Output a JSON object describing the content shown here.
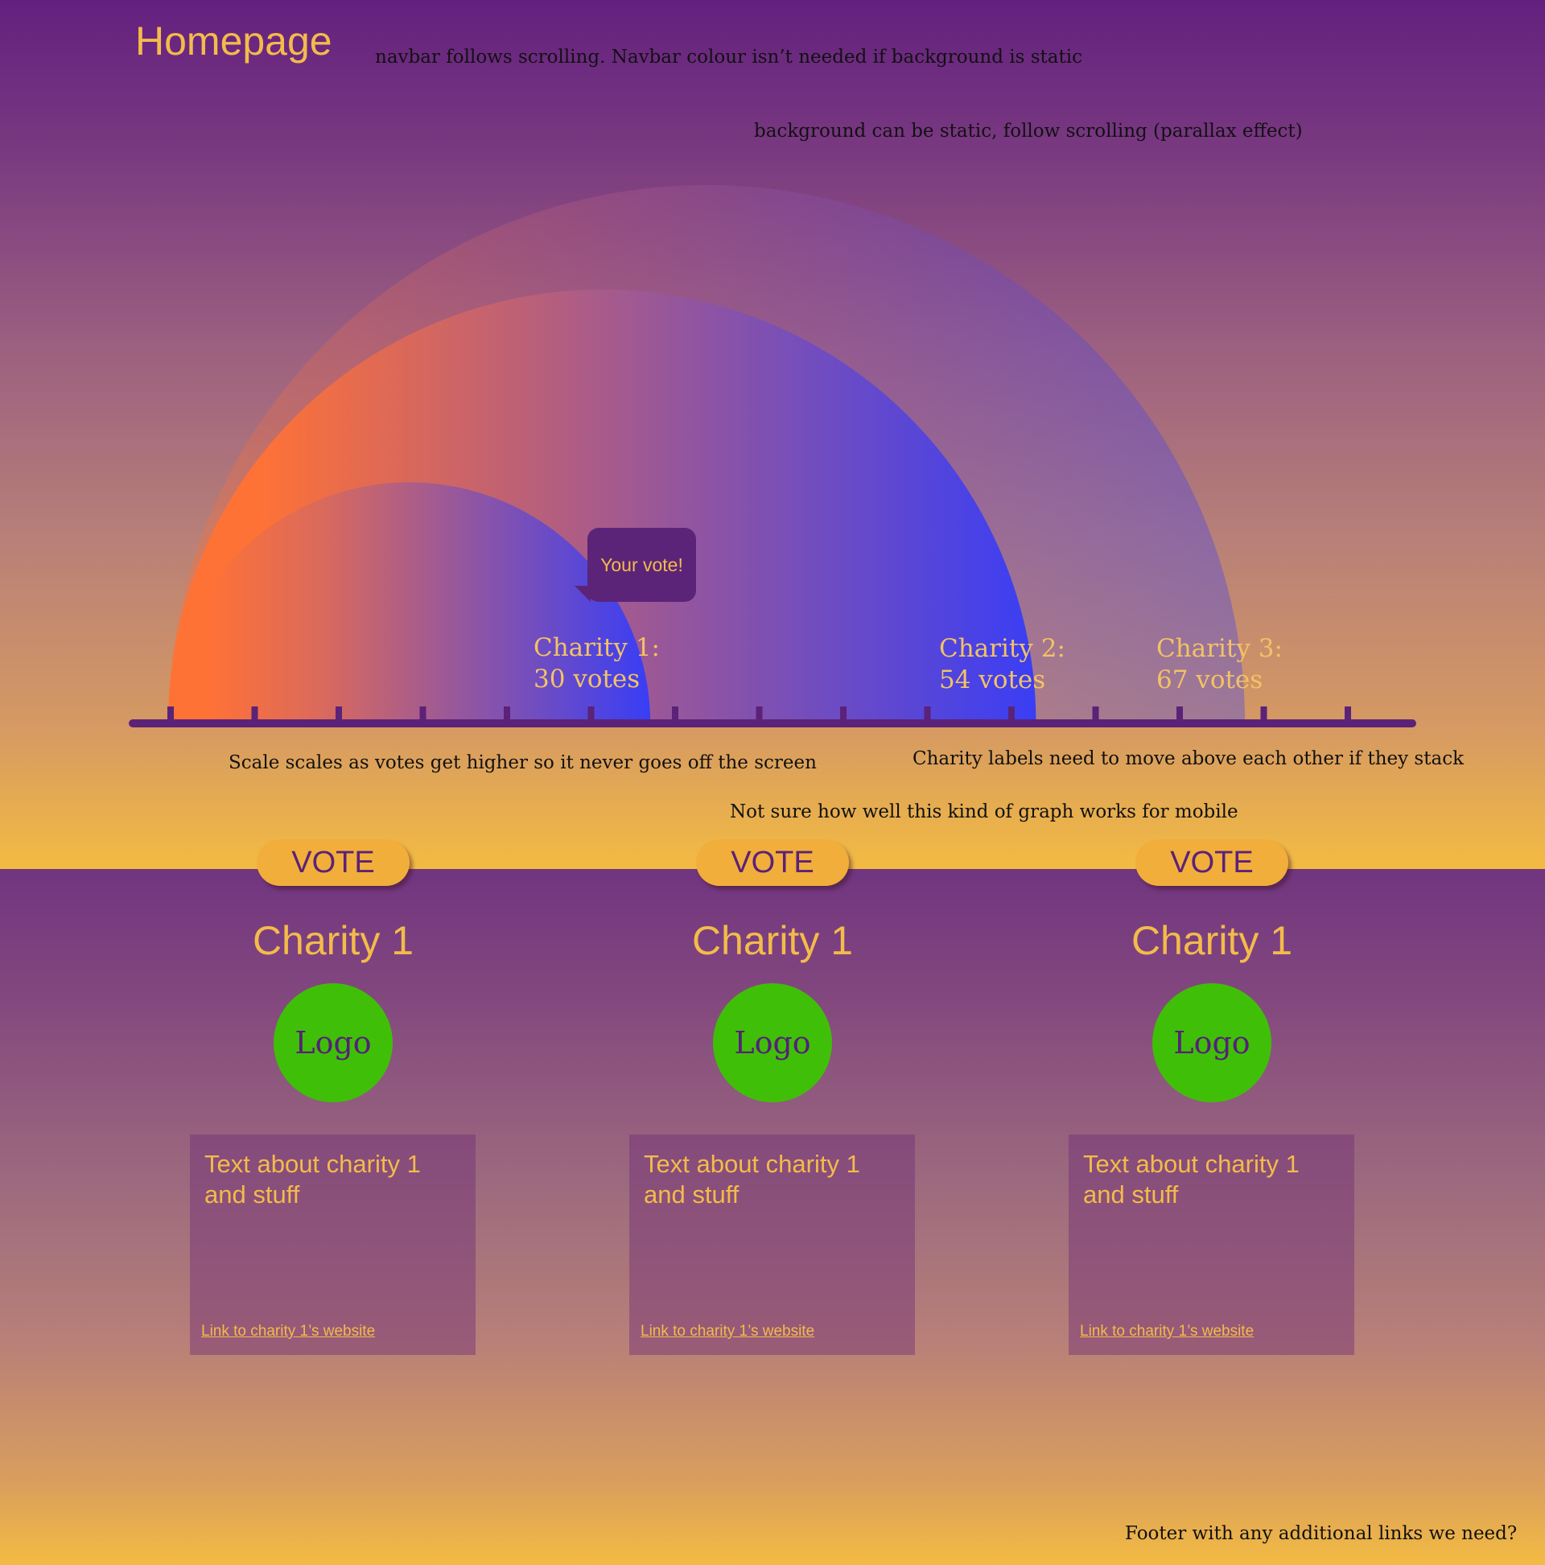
{
  "navbar": {
    "title": "Homepage"
  },
  "notes": {
    "navbar": "navbar follows scrolling. Navbar colour isn’t needed if background is static",
    "background": "background can be static, follow scrolling (parallax effect)",
    "scale": "Scale scales as votes get higher so it never goes off the screen",
    "labels": "Charity labels need to move above each other if they stack",
    "mobile": "Not sure how well this kind of graph works for mobile",
    "footer": "Footer with any additional links we need?"
  },
  "vote_bubble": "Your vote!",
  "chart_data": {
    "type": "bar",
    "title": "",
    "categories": [
      "Charity 1",
      "Charity 2",
      "Charity 3"
    ],
    "values": [
      30,
      54,
      67
    ],
    "labels": [
      {
        "name": "Charity 1:",
        "votes": "30 votes"
      },
      {
        "name": "Charity 2:",
        "votes": "54 votes"
      },
      {
        "name": "Charity 3:",
        "votes": "67 votes"
      }
    ],
    "xlim": [
      0,
      70
    ],
    "tick_count": 15,
    "colors": {
      "start": "#ff7236",
      "end": "#2f3bff",
      "axis": "#5b2278"
    }
  },
  "vote_label": "VOTE",
  "charities": [
    {
      "name": "Charity 1",
      "logo": "Logo",
      "text": "Text about charity 1 and stuff",
      "link": "Link to charity 1’s website"
    },
    {
      "name": "Charity 1",
      "logo": "Logo",
      "text": "Text about charity 1 and stuff",
      "link": "Link to charity 1’s website"
    },
    {
      "name": "Charity 1",
      "logo": "Logo",
      "text": "Text about charity 1 and stuff",
      "link": "Link to charity 1’s website"
    }
  ]
}
